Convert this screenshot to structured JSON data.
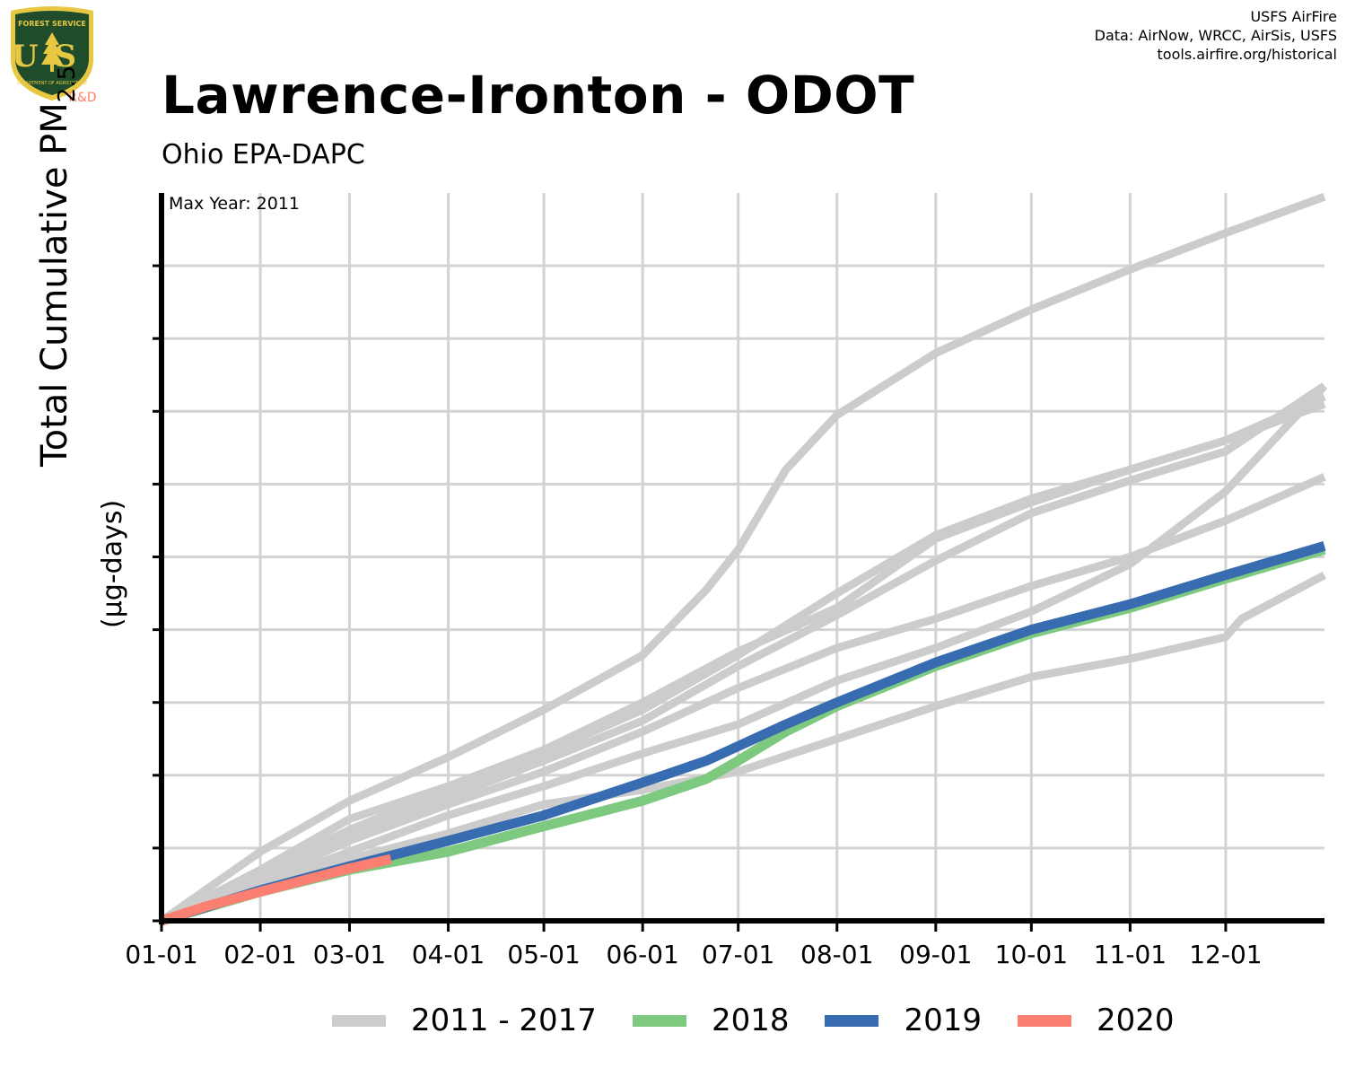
{
  "header": {
    "title": "Lawrence-Ironton - ODOT",
    "subtitle": "Ohio EPA-DAPC",
    "credits": [
      "USFS AirFire",
      "Data: AirNow, WRCC, AirSis, USFS",
      "tools.airfire.org/historical"
    ]
  },
  "logo": {
    "text_top": "FOREST SERVICE",
    "text_bottom": "DEPARTMENT OF AGRICULTURE",
    "letters": "US",
    "rd": "R&D",
    "colors": {
      "shield": "#1f4d2b",
      "border": "#e8c843",
      "rd": "#ff7f6a"
    }
  },
  "chart_data": {
    "type": "line",
    "title": "Lawrence-Ironton - ODOT",
    "subtitle": "Ohio EPA-DAPC",
    "annotation": "Max Year: 2011",
    "ylabel": "Total Cumulative PM",
    "ylabel_sub": "2.5",
    "yunit": "(µg-days)",
    "ylim": [
      0,
      10
    ],
    "yticks": [
      0,
      1,
      2,
      3,
      4,
      5,
      6,
      7,
      8,
      9
    ],
    "y_tick_labels_shown": false,
    "x_tick_labels": [
      "01-01",
      "02-01",
      "03-01",
      "04-01",
      "05-01",
      "06-01",
      "07-01",
      "08-01",
      "09-01",
      "10-01",
      "11-01",
      "12-01"
    ],
    "x_tick_days": [
      1,
      32,
      60,
      91,
      121,
      152,
      182,
      213,
      244,
      274,
      305,
      335
    ],
    "xlim": [
      1,
      366
    ],
    "grid": true,
    "legend_position": "bottom",
    "legend": [
      {
        "label": "2011 - 2017",
        "color": "#cccccc"
      },
      {
        "label": "2018",
        "color": "#7dc97f"
      },
      {
        "label": "2019",
        "color": "#386cb0"
      },
      {
        "label": "2020",
        "color": "#fb8072"
      }
    ],
    "series": [
      {
        "group": "2011 - 2017",
        "color": "#cccccc",
        "x": [
          1,
          32,
          60,
          91,
          121,
          152,
          172,
          182,
          197,
          213,
          244,
          274,
          305,
          335,
          366
        ],
        "y": [
          0,
          0.95,
          1.65,
          2.25,
          2.9,
          3.65,
          4.55,
          5.1,
          6.2,
          6.95,
          7.8,
          8.4,
          8.95,
          9.45,
          9.95
        ]
      },
      {
        "group": "2011 - 2017",
        "color": "#cccccc",
        "x": [
          1,
          32,
          60,
          91,
          121,
          152,
          182,
          213,
          244,
          274,
          305,
          335,
          366
        ],
        "y": [
          0,
          0.65,
          1.25,
          1.8,
          2.3,
          2.9,
          3.65,
          4.5,
          5.3,
          5.8,
          6.2,
          6.6,
          7.2
        ]
      },
      {
        "group": "2011 - 2017",
        "color": "#cccccc",
        "x": [
          1,
          32,
          60,
          91,
          121,
          152,
          182,
          213,
          244,
          274,
          305,
          335,
          366
        ],
        "y": [
          0,
          0.7,
          1.4,
          1.85,
          2.35,
          3.0,
          3.7,
          4.3,
          5.25,
          5.75,
          6.2,
          6.6,
          7.1
        ]
      },
      {
        "group": "2011 - 2017",
        "color": "#cccccc",
        "x": [
          1,
          32,
          60,
          91,
          121,
          152,
          182,
          213,
          244,
          274,
          305,
          335,
          366
        ],
        "y": [
          0,
          0.6,
          1.15,
          1.7,
          2.2,
          2.75,
          3.5,
          4.2,
          4.95,
          5.6,
          6.05,
          6.45,
          7.35
        ]
      },
      {
        "group": "2011 - 2017",
        "color": "#cccccc",
        "x": [
          1,
          32,
          60,
          91,
          121,
          152,
          182,
          213,
          244,
          274,
          305,
          335,
          366
        ],
        "y": [
          0,
          0.55,
          1.1,
          1.6,
          2.05,
          2.6,
          3.2,
          3.75,
          4.15,
          4.6,
          5.0,
          5.5,
          6.1
        ]
      },
      {
        "group": "2011 - 2017",
        "color": "#cccccc",
        "x": [
          1,
          32,
          60,
          91,
          121,
          152,
          182,
          213,
          244,
          274,
          305,
          305,
          335,
          340,
          366
        ],
        "y": [
          0,
          0.45,
          0.85,
          1.2,
          1.6,
          1.8,
          2.05,
          2.5,
          2.95,
          3.35,
          3.6,
          3.6,
          3.9,
          4.15,
          4.75
        ]
      },
      {
        "group": "2011 - 2017",
        "color": "#cccccc",
        "x": [
          1,
          32,
          60,
          91,
          121,
          152,
          182,
          213,
          244,
          274,
          305,
          335,
          366
        ],
        "y": [
          0,
          0.5,
          0.95,
          1.45,
          1.85,
          2.3,
          2.7,
          3.3,
          3.75,
          4.25,
          4.9,
          5.9,
          7.35
        ]
      },
      {
        "group": "2018",
        "color": "#7dc97f",
        "x": [
          1,
          32,
          60,
          91,
          121,
          152,
          172,
          182,
          197,
          213,
          244,
          274,
          305,
          335,
          366
        ],
        "y": [
          0,
          0.4,
          0.7,
          0.95,
          1.3,
          1.65,
          1.95,
          2.2,
          2.6,
          2.95,
          3.5,
          3.95,
          4.3,
          4.7,
          5.1
        ]
      },
      {
        "group": "2019",
        "color": "#386cb0",
        "x": [
          1,
          32,
          60,
          91,
          121,
          152,
          172,
          182,
          197,
          213,
          244,
          274,
          305,
          335,
          366
        ],
        "y": [
          0,
          0.42,
          0.75,
          1.1,
          1.45,
          1.9,
          2.2,
          2.4,
          2.7,
          3.0,
          3.55,
          4.0,
          4.35,
          4.75,
          5.15
        ]
      },
      {
        "group": "2020",
        "color": "#fb8072",
        "x": [
          1,
          15,
          32,
          45,
          60,
          73
        ],
        "y": [
          0,
          0.2,
          0.4,
          0.55,
          0.72,
          0.85
        ]
      }
    ]
  }
}
